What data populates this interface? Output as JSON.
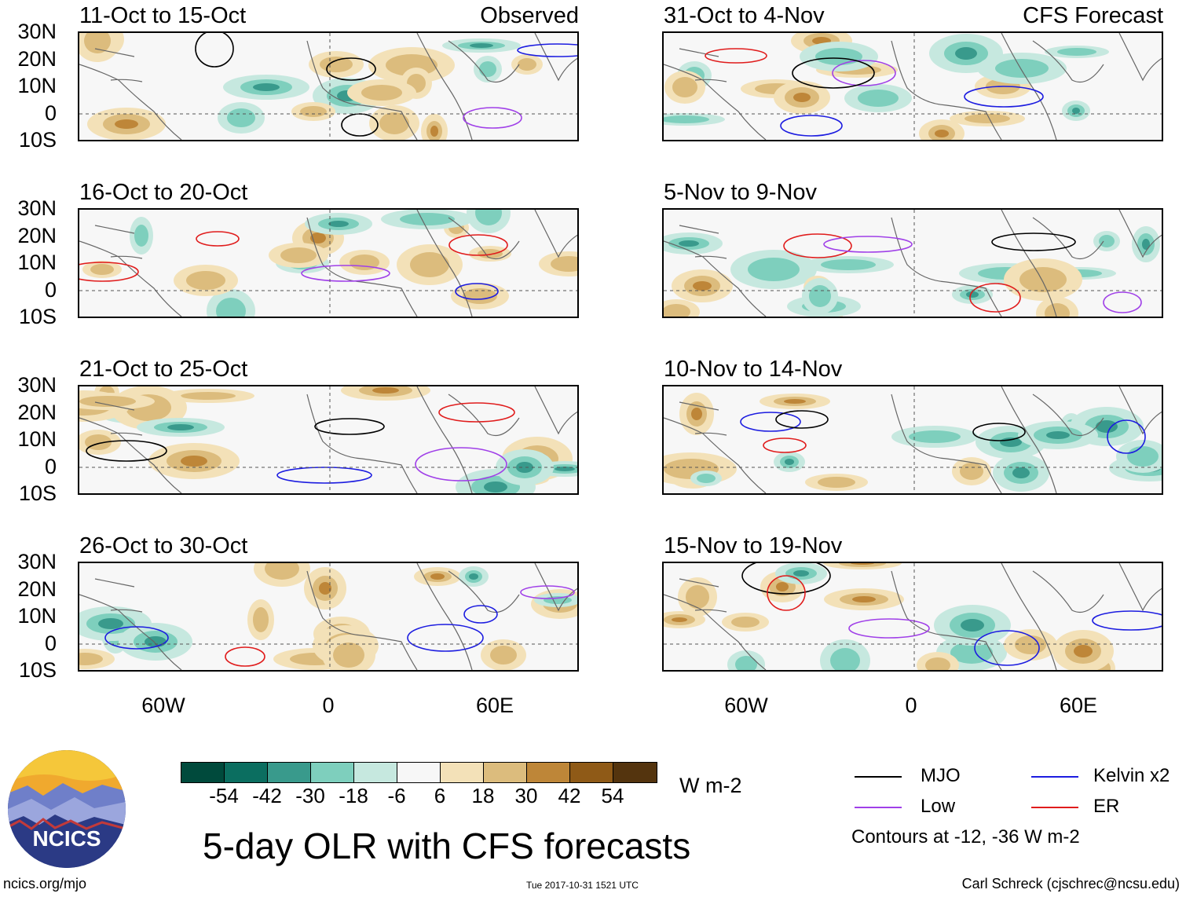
{
  "panels": [
    {
      "title": "11-Oct to 15-Oct",
      "label": "Observed"
    },
    {
      "title": "31-Oct to 4-Nov",
      "label": "CFS Forecast"
    },
    {
      "title": "16-Oct to 20-Oct",
      "label": ""
    },
    {
      "title": "5-Nov to 9-Nov",
      "label": ""
    },
    {
      "title": "21-Oct to 25-Oct",
      "label": ""
    },
    {
      "title": "10-Nov to 14-Nov",
      "label": ""
    },
    {
      "title": "26-Oct to 30-Oct",
      "label": ""
    },
    {
      "title": "15-Nov to 19-Nov",
      "label": ""
    }
  ],
  "lat_labels": [
    "30N",
    "20N",
    "10N",
    "0",
    "10S"
  ],
  "lon_labels": [
    "60W",
    "0",
    "60E"
  ],
  "colorbar": {
    "colors": [
      "#004a3c",
      "#0b6e60",
      "#399a8c",
      "#7ecfbd",
      "#c6e8df",
      "#f7f7f7",
      "#f3e1b8",
      "#dcbc7d",
      "#be8638",
      "#8f5a17",
      "#54340e"
    ],
    "tick_labels": [
      "-54",
      "-42",
      "-30",
      "-18",
      "-6",
      "6",
      "18",
      "30",
      "42",
      "54"
    ],
    "units": "W m-2"
  },
  "legend": {
    "items": [
      {
        "name": "MJO",
        "color": "#000000"
      },
      {
        "name": "Kelvin x2",
        "color": "#1c1ce0"
      },
      {
        "name": "Low",
        "color": "#a040e8"
      },
      {
        "name": "ER",
        "color": "#e01c1c"
      }
    ],
    "note": "Contours at -12, -36 W m-2"
  },
  "logo_text": "NCICS",
  "main_title": "5-day OLR with CFS forecasts",
  "footer": {
    "left": "ncics.org/mjo",
    "center": "Tue 2017-10-31 1521 UTC",
    "right": "Carl Schreck (cjschrec@ncsu.edu)"
  }
}
